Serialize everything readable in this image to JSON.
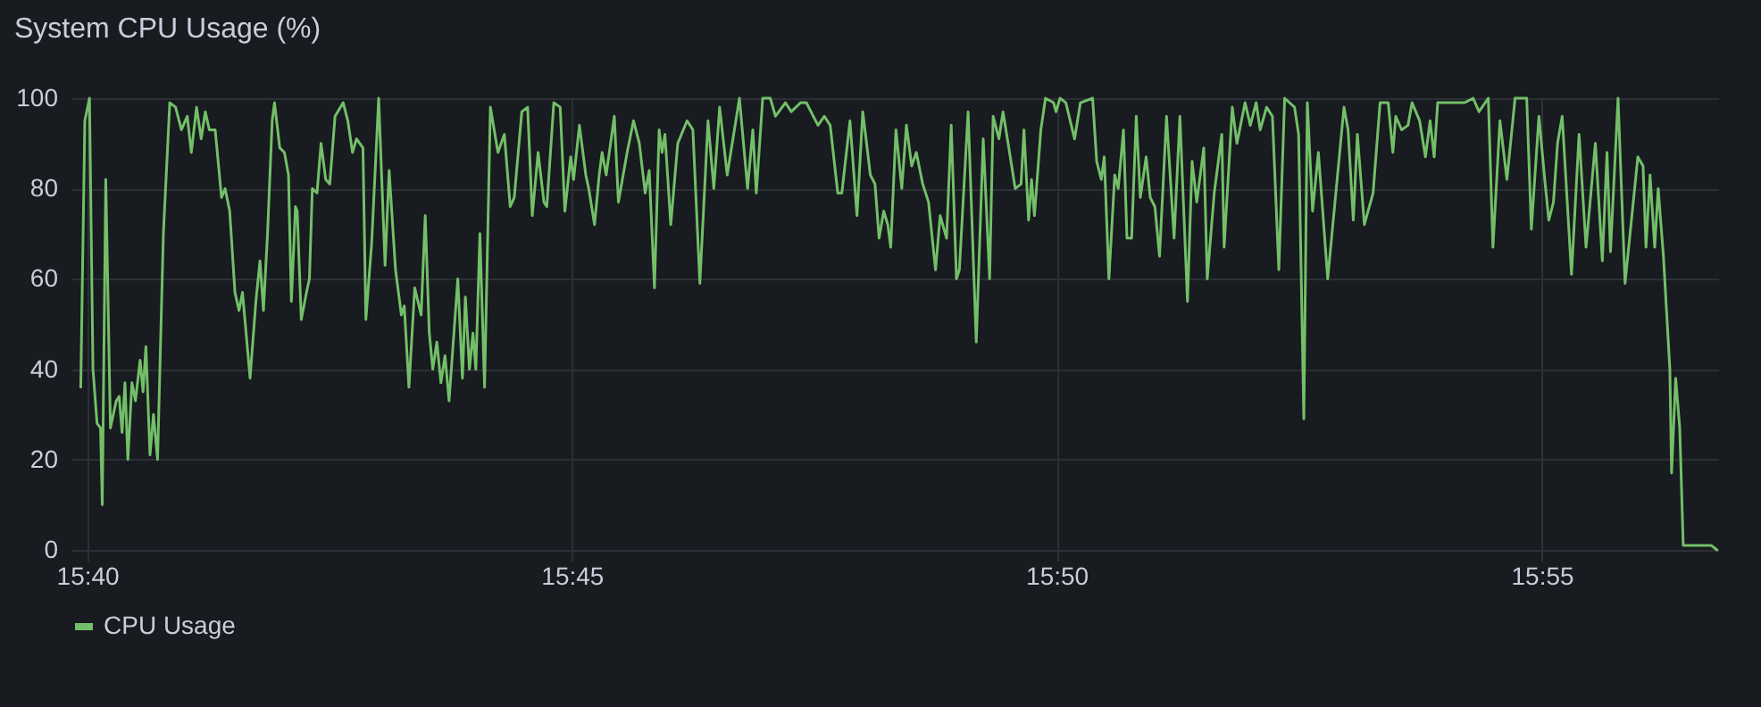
{
  "chart_data": {
    "type": "line",
    "title": "System CPU Usage (%)",
    "x": [
      15.6656,
      15.6663,
      15.6671,
      15.6677,
      15.6684,
      15.669,
      15.6693,
      15.6699,
      15.6707,
      15.6717,
      15.6722,
      15.6727,
      15.6732,
      15.6737,
      15.6744,
      15.675,
      15.6758,
      15.6763,
      15.6768,
      15.6775,
      15.6781,
      15.6788,
      15.6798,
      15.6809,
      15.6819,
      15.6829,
      15.6839,
      15.6846,
      15.6855,
      15.6863,
      15.687,
      15.6877,
      15.6887,
      15.6898,
      15.6904,
      15.6912,
      15.6921,
      15.6928,
      15.6934,
      15.6947,
      15.6957,
      15.6964,
      15.697,
      15.6977,
      15.6985,
      15.6989,
      15.6998,
      15.7006,
      15.7013,
      15.7018,
      15.7025,
      15.7028,
      15.7035,
      15.7044,
      15.7049,
      15.7054,
      15.7062,
      15.7069,
      15.7077,
      15.7084,
      15.7093,
      15.7107,
      15.7115,
      15.7123,
      15.713,
      15.7141,
      15.7146,
      15.7156,
      15.7168,
      15.7179,
      15.7186,
      15.7197,
      15.7207,
      15.7212,
      15.722,
      15.723,
      15.7241,
      15.7248,
      15.7255,
      15.7261,
      15.7268,
      15.7275,
      15.7282,
      15.7289,
      15.7304,
      15.7312,
      15.7317,
      15.7324,
      15.733,
      15.7335,
      15.7342,
      15.735,
      15.736,
      15.7373,
      15.7384,
      15.7394,
      15.7401,
      15.7414,
      15.7424,
      15.7432,
      15.7442,
      15.7452,
      15.7457,
      15.7469,
      15.748,
      15.7488,
      15.7498,
      15.7503,
      15.7513,
      15.7524,
      15.7529,
      15.7539,
      15.7547,
      15.7552,
      15.7559,
      15.7573,
      15.758,
      15.7595,
      15.7606,
      15.7616,
      15.7626,
      15.7633,
      15.7642,
      15.765,
      15.7655,
      15.766,
      15.767,
      15.7682,
      15.7698,
      15.7708,
      15.772,
      15.7734,
      15.7744,
      15.7754,
      15.7767,
      15.7788,
      15.7802,
      15.7811,
      15.7817,
      15.7828,
      15.7841,
      15.785,
      15.7867,
      15.7877,
      15.7893,
      15.7903,
      15.7923,
      15.7934,
      15.7944,
      15.7957,
      15.7964,
      15.7978,
      15.799,
      15.8,
      15.8013,
      15.8021,
      15.8028,
      15.8036,
      15.8043,
      15.8048,
      15.8057,
      15.8067,
      15.8075,
      15.8084,
      15.8092,
      15.8103,
      15.8113,
      15.8125,
      15.8133,
      15.8144,
      15.8152,
      15.8161,
      15.8166,
      15.8181,
      15.8195,
      15.8207,
      15.8218,
      15.8224,
      15.8234,
      15.8241,
      15.8251,
      15.8262,
      15.8272,
      15.8277,
      15.8285,
      15.829,
      15.8295,
      15.8306,
      15.8314,
      15.8328,
      15.8332,
      15.8339,
      15.8349,
      15.8364,
      15.8374,
      15.8395,
      15.8402,
      15.841,
      15.8415,
      15.8423,
      15.8433,
      15.8439,
      15.8448,
      15.8454,
      15.8462,
      15.847,
      15.8477,
      15.8487,
      15.8494,
      15.8502,
      15.851,
      15.8522,
      15.8535,
      15.8545,
      15.8558,
      15.8566,
      15.8574,
      15.8586,
      15.8592,
      15.8604,
      15.8617,
      15.8621,
      15.8635,
      15.8643,
      15.8657,
      15.8666,
      15.8676,
      15.8683,
      15.8694,
      15.8704,
      15.8715,
      15.8725,
      15.8742,
      15.8749,
      15.8758,
      15.8764,
      15.8773,
      15.8783,
      15.8799,
      15.8827,
      15.8834,
      15.8843,
      15.885,
      15.8862,
      15.8877,
      15.8889,
      15.8903,
      15.8911,
      15.8916,
      15.8926,
      15.8937,
      15.8944,
      15.8957,
      15.8967,
      15.8975,
      15.8982,
      15.8988,
      15.9008,
      15.9034,
      15.9049,
      15.9059,
      15.9075,
      15.9083,
      15.9095,
      15.9107,
      15.9121,
      15.9141,
      15.9149,
      15.9162,
      15.9172,
      15.9179,
      15.9187,
      15.9194,
      15.9202,
      15.9218,
      15.9231,
      15.9243,
      15.9259,
      15.9271,
      15.9279,
      15.9285,
      15.9298,
      15.931,
      15.9332,
      15.9341,
      15.9346,
      15.9353,
      15.9361,
      15.9367,
      15.9376,
      15.9387,
      15.939,
      15.9397,
      15.9404,
      15.941,
      15.9427,
      15.9443,
      15.9458,
      15.9468
    ],
    "series": [
      {
        "name": "CPU Usage",
        "color": "#73bf69",
        "values": [
          36,
          95,
          100,
          40,
          28,
          27,
          10,
          82,
          27,
          33,
          34,
          26,
          37,
          20,
          37,
          33,
          42,
          35,
          45,
          21,
          30,
          20,
          70,
          99,
          98,
          93,
          96,
          88,
          98,
          91,
          97,
          93,
          93,
          78,
          80,
          75,
          57,
          53,
          57,
          38,
          55,
          64,
          53,
          70,
          95,
          99,
          89,
          88,
          83,
          55,
          76,
          75,
          51,
          57,
          60,
          80,
          79,
          90,
          82,
          81,
          96,
          99,
          95,
          88,
          91,
          89,
          51,
          68,
          100,
          63,
          84,
          62,
          52,
          54,
          36,
          58,
          52,
          74,
          48,
          40,
          46,
          37,
          43,
          33,
          60,
          38,
          56,
          40,
          48,
          40,
          70,
          36,
          98,
          88,
          92,
          76,
          78,
          97,
          98,
          74,
          88,
          77,
          76,
          99,
          98,
          75,
          87,
          82,
          94,
          83,
          80,
          72,
          83,
          88,
          83,
          96,
          77,
          88,
          95,
          90,
          79,
          84,
          58,
          93,
          88,
          92,
          72,
          90,
          95,
          93,
          59,
          95,
          80,
          98,
          83,
          100,
          80,
          93,
          79,
          100,
          100,
          96,
          99,
          97,
          99,
          99,
          94,
          96,
          94,
          79,
          79,
          95,
          74,
          97,
          83,
          81,
          69,
          75,
          72,
          67,
          93,
          80,
          94,
          85,
          88,
          81,
          77,
          62,
          74,
          69,
          94,
          60,
          62,
          97,
          46,
          91,
          60,
          96,
          91,
          97,
          89,
          80,
          81,
          93,
          73,
          82,
          74,
          93,
          100,
          99,
          97,
          100,
          99,
          91,
          99,
          100,
          86,
          82,
          87,
          60,
          83,
          80,
          93,
          69,
          69,
          96,
          78,
          87,
          78,
          76,
          65,
          96,
          69,
          96,
          55,
          86,
          77,
          89,
          60,
          79,
          92,
          67,
          98,
          90,
          99,
          94,
          99,
          93,
          98,
          96,
          62,
          100,
          98,
          92,
          29,
          99,
          75,
          88,
          60,
          98,
          93,
          73,
          92,
          72,
          79,
          99,
          99,
          88,
          96,
          93,
          94,
          99,
          95,
          87,
          95,
          87,
          99,
          99,
          99,
          100,
          97,
          100,
          67,
          95,
          82,
          100,
          100,
          71,
          96,
          82,
          73,
          77,
          90,
          96,
          61,
          92,
          67,
          90,
          64,
          88,
          66,
          100,
          59,
          87,
          85,
          67,
          83,
          67,
          80,
          65,
          40,
          17,
          38,
          27,
          1,
          1,
          1,
          1,
          0
        ]
      }
    ],
    "xlim": [
      15.664,
      15.947
    ],
    "xticks": [
      {
        "value": 15.6667,
        "label": "15:40"
      },
      {
        "value": 15.75,
        "label": "15:45"
      },
      {
        "value": 15.8333,
        "label": "15:50"
      },
      {
        "value": 15.9167,
        "label": "15:55"
      }
    ],
    "ylim": [
      0,
      100
    ],
    "yticks": [
      0,
      20,
      40,
      60,
      80,
      100
    ],
    "grid": true,
    "legend": "bottom",
    "marker": "none",
    "line_style": "solid"
  }
}
